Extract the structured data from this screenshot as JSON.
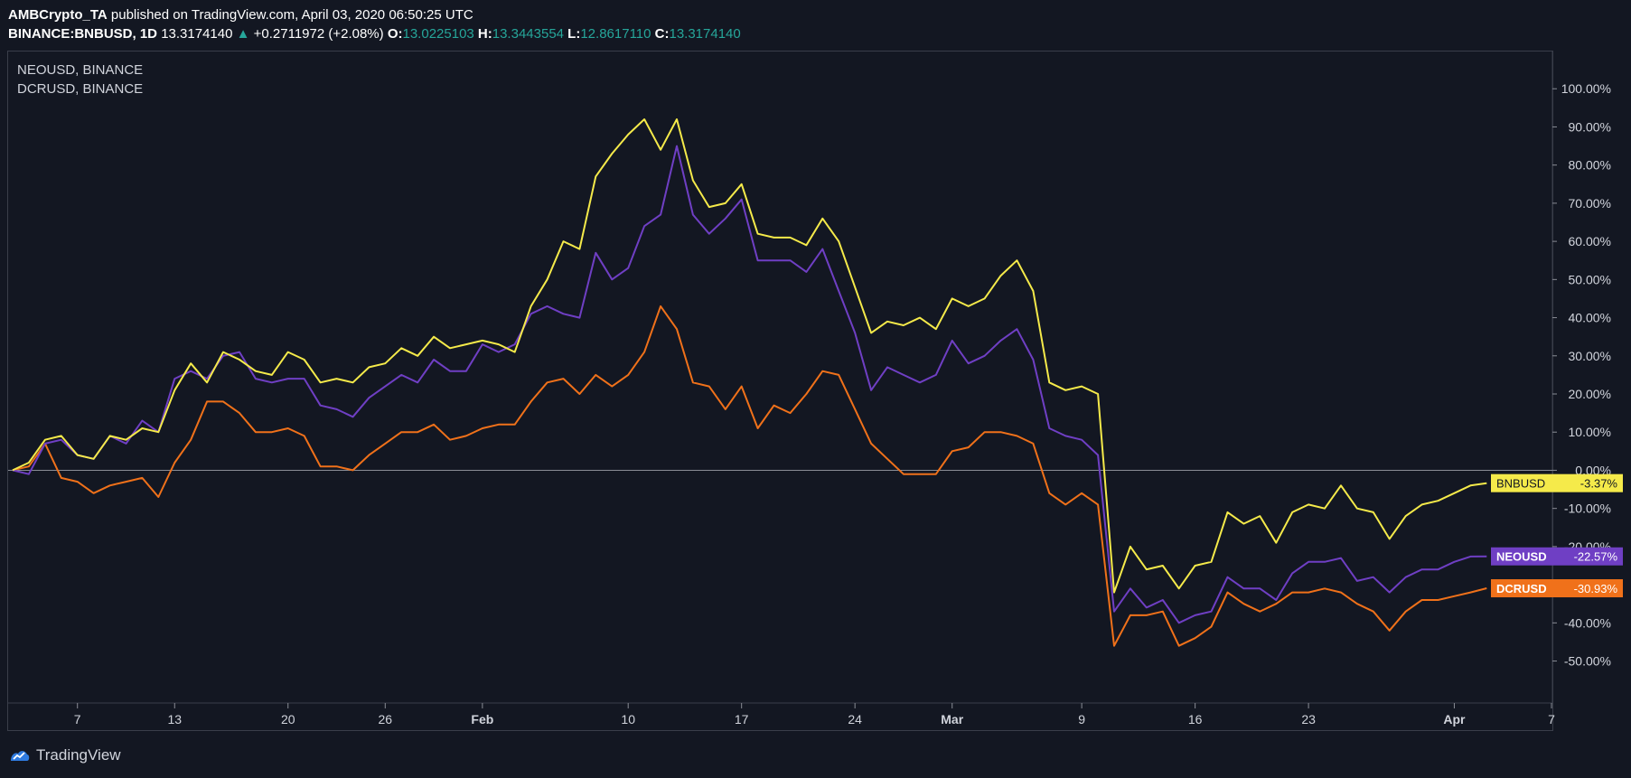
{
  "header": {
    "author": "AMBCrypto_TA",
    "published_text": "published on TradingView.com, April 03, 2020 06:50:25 UTC",
    "symbol": "BINANCE:BNBUSD, 1D",
    "last": "13.3174140",
    "change": "+0.2711972 (+2.08%)",
    "o_label": "O:",
    "o_value": "13.0225103",
    "h_label": "H:",
    "h_value": "13.3443554",
    "l_label": "L:",
    "l_value": "12.8617110",
    "c_label": "C:",
    "c_value": "13.3174140"
  },
  "legend": {
    "line1": "NEOUSD, BINANCE",
    "line2": "DCRUSD, BINANCE"
  },
  "footer": {
    "brand": "TradingView"
  },
  "colors": {
    "background": "#131722",
    "bnb": "#f5ea4a",
    "neo": "#6f3fc4",
    "dcr": "#f0711a",
    "axis_text": "#d1d4dc"
  },
  "chart_data": {
    "type": "line",
    "x": [
      "Jan 3",
      "Jan 4",
      "Jan 5",
      "Jan 6",
      "Jan 7",
      "Jan 8",
      "Jan 9",
      "Jan 10",
      "Jan 11",
      "Jan 12",
      "Jan 13",
      "Jan 14",
      "Jan 15",
      "Jan 16",
      "Jan 17",
      "Jan 18",
      "Jan 19",
      "Jan 20",
      "Jan 21",
      "Jan 22",
      "Jan 23",
      "Jan 24",
      "Jan 25",
      "Jan 26",
      "Jan 27",
      "Jan 28",
      "Jan 29",
      "Jan 30",
      "Jan 31",
      "Feb 1",
      "Feb 2",
      "Feb 3",
      "Feb 4",
      "Feb 5",
      "Feb 6",
      "Feb 7",
      "Feb 8",
      "Feb 9",
      "Feb 10",
      "Feb 11",
      "Feb 12",
      "Feb 13",
      "Feb 14",
      "Feb 15",
      "Feb 16",
      "Feb 17",
      "Feb 18",
      "Feb 19",
      "Feb 20",
      "Feb 21",
      "Feb 22",
      "Feb 23",
      "Feb 24",
      "Feb 25",
      "Feb 26",
      "Feb 27",
      "Feb 28",
      "Feb 29",
      "Mar 1",
      "Mar 2",
      "Mar 3",
      "Mar 4",
      "Mar 5",
      "Mar 6",
      "Mar 7",
      "Mar 8",
      "Mar 9",
      "Mar 10",
      "Mar 11",
      "Mar 12",
      "Mar 13",
      "Mar 14",
      "Mar 15",
      "Mar 16",
      "Mar 17",
      "Mar 18",
      "Mar 19",
      "Mar 20",
      "Mar 21",
      "Mar 22",
      "Mar 23",
      "Mar 24",
      "Mar 25",
      "Mar 26",
      "Mar 27",
      "Mar 28",
      "Mar 29",
      "Mar 30",
      "Mar 31",
      "Apr 1",
      "Apr 2",
      "Apr 3"
    ],
    "x_ticks": [
      {
        "date": "Jan 7",
        "label": "7",
        "bold": false
      },
      {
        "date": "Jan 13",
        "label": "13",
        "bold": false
      },
      {
        "date": "Jan 20",
        "label": "20",
        "bold": false
      },
      {
        "date": "Jan 26",
        "label": "26",
        "bold": false
      },
      {
        "date": "Feb 1",
        "label": "Feb",
        "bold": true
      },
      {
        "date": "Feb 10",
        "label": "10",
        "bold": false
      },
      {
        "date": "Feb 17",
        "label": "17",
        "bold": false
      },
      {
        "date": "Feb 24",
        "label": "24",
        "bold": false
      },
      {
        "date": "Mar 1",
        "label": "Mar",
        "bold": true
      },
      {
        "date": "Mar 9",
        "label": "9",
        "bold": false
      },
      {
        "date": "Mar 16",
        "label": "16",
        "bold": false
      },
      {
        "date": "Mar 23",
        "label": "23",
        "bold": false
      },
      {
        "date": "Apr 1",
        "label": "Apr",
        "bold": true
      },
      {
        "date": "Apr 7",
        "label": "7",
        "bold": false
      }
    ],
    "y_ticks": [
      "100.00%",
      "90.00%",
      "80.00%",
      "70.00%",
      "60.00%",
      "50.00%",
      "40.00%",
      "30.00%",
      "20.00%",
      "10.00%",
      "0.00%",
      "-10.00%",
      "-20.00%",
      "-30.00%",
      "-40.00%",
      "-50.00%"
    ],
    "y_tick_values": [
      100,
      90,
      80,
      70,
      60,
      50,
      40,
      30,
      20,
      10,
      0,
      -10,
      -20,
      -30,
      -40,
      -50
    ],
    "ylim": [
      -61,
      110
    ],
    "x_range": [
      "Jan 3",
      "Apr 7"
    ],
    "zero_line": true,
    "grid": false,
    "series": [
      {
        "name": "BNBUSD",
        "color": "#f5ea4a",
        "label": "BNBUSD",
        "last_label": "-3.37%",
        "values": [
          0,
          2,
          8,
          9,
          4,
          3,
          9,
          8,
          11,
          10,
          21,
          28,
          23,
          31,
          29,
          26,
          25,
          31,
          29,
          23,
          24,
          23,
          27,
          28,
          32,
          30,
          35,
          32,
          33,
          34,
          33,
          31,
          43,
          50,
          60,
          58,
          77,
          83,
          88,
          92,
          84,
          92,
          76,
          69,
          70,
          75,
          62,
          61,
          61,
          59,
          66,
          60,
          48,
          36,
          39,
          38,
          40,
          37,
          45,
          43,
          45,
          51,
          55,
          47,
          23,
          21,
          22,
          20,
          -32,
          -20,
          -26,
          -25,
          -31,
          -25,
          -24,
          -11,
          -14,
          -12,
          -19,
          -11,
          -9,
          -10,
          -4,
          -10,
          -11,
          -18,
          -12,
          -9,
          -8,
          -6,
          -4,
          -3.37
        ]
      },
      {
        "name": "NEOUSD",
        "color": "#6f3fc4",
        "label": "NEOUSD",
        "last_label": "-22.57%",
        "values": [
          0,
          -1,
          7,
          8,
          4,
          3,
          9,
          7,
          13,
          10,
          24,
          26,
          24,
          30,
          31,
          24,
          23,
          24,
          24,
          17,
          16,
          14,
          19,
          22,
          25,
          23,
          29,
          26,
          26,
          33,
          31,
          33,
          41,
          43,
          41,
          40,
          57,
          50,
          53,
          64,
          67,
          85,
          67,
          62,
          66,
          71,
          55,
          55,
          55,
          52,
          58,
          47,
          36,
          21,
          27,
          25,
          23,
          25,
          34,
          28,
          30,
          34,
          37,
          29,
          11,
          9,
          8,
          4,
          -37,
          -31,
          -36,
          -34,
          -40,
          -38,
          -37,
          -28,
          -31,
          -31,
          -34,
          -27,
          -24,
          -24,
          -23,
          -29,
          -28,
          -32,
          -28,
          -26,
          -26,
          -24,
          -22.6,
          -22.57
        ]
      },
      {
        "name": "DCRUSD",
        "color": "#f0711a",
        "label": "DCRUSD",
        "last_label": "-30.93%",
        "values": [
          0,
          1,
          7,
          -2,
          -3,
          -6,
          -4,
          -3,
          -2,
          -7,
          2,
          8,
          18,
          18,
          15,
          10,
          10,
          11,
          9,
          1,
          1,
          0,
          4,
          7,
          10,
          10,
          12,
          8,
          9,
          11,
          12,
          12,
          18,
          23,
          24,
          20,
          25,
          22,
          25,
          31,
          43,
          37,
          23,
          22,
          16,
          22,
          11,
          17,
          15,
          20,
          26,
          25,
          16,
          7,
          3,
          -1,
          -1,
          -1,
          5,
          6,
          10,
          10,
          9,
          7,
          -6,
          -9,
          -6,
          -9,
          -46,
          -38,
          -38,
          -37,
          -46,
          -44,
          -41,
          -32,
          -35,
          -37,
          -35,
          -32,
          -32,
          -31,
          -32,
          -35,
          -37,
          -42,
          -37,
          -34,
          -34,
          -33,
          -32,
          -30.93
        ]
      }
    ]
  }
}
